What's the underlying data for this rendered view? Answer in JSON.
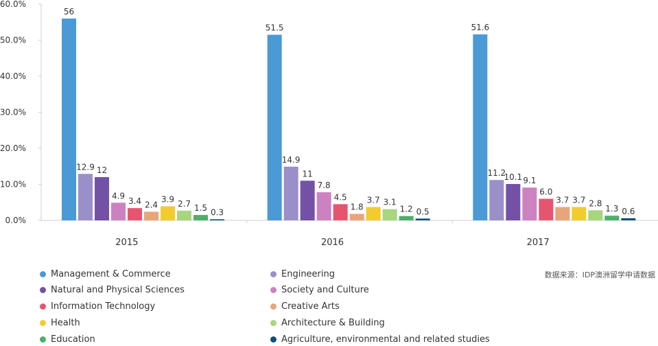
{
  "chart_data": {
    "type": "bar",
    "categories": [
      "2015",
      "2016",
      "2017"
    ],
    "y_tick_labels": [
      "0.0%",
      "10.0%",
      "20.0%",
      "30.0%",
      "40.0%",
      "50.0%",
      "60.0%"
    ],
    "ylim": [
      0,
      60
    ],
    "grid": false,
    "legend_placement": "bottom",
    "series": [
      {
        "name": "Management & Commerce",
        "color": "#4a9ad6",
        "values": [
          56,
          51.5,
          51.6
        ],
        "labels": [
          "56",
          "51.5",
          "51.6"
        ]
      },
      {
        "name": "Engineering",
        "color": "#9a8fc8",
        "values": [
          12.9,
          14.9,
          11.2
        ],
        "labels": [
          "12.9",
          "14.9",
          "11.2"
        ]
      },
      {
        "name": "Natural and Physical Sciences",
        "color": "#7352a6",
        "values": [
          12,
          11,
          10.1
        ],
        "labels": [
          "12",
          "11",
          "10.1"
        ]
      },
      {
        "name": "Society and Culture",
        "color": "#cc82c0",
        "values": [
          4.9,
          7.8,
          9.1
        ],
        "labels": [
          "4.9",
          "7.8",
          "9.1"
        ]
      },
      {
        "name": "Information Technology",
        "color": "#e5566e",
        "values": [
          3.4,
          4.5,
          6.0
        ],
        "labels": [
          "3.4",
          "4.5",
          "6.0"
        ]
      },
      {
        "name": "Creative Arts",
        "color": "#e8a57a",
        "values": [
          2.4,
          1.8,
          3.7
        ],
        "labels": [
          "2.4",
          "1.8",
          "3.7"
        ]
      },
      {
        "name": "Health",
        "color": "#f2cb2e",
        "values": [
          3.9,
          3.7,
          3.7
        ],
        "labels": [
          "3.9",
          "3.7",
          "3.7"
        ]
      },
      {
        "name": "Architecture & Building",
        "color": "#a7d67e",
        "values": [
          2.7,
          3.1,
          2.8
        ],
        "labels": [
          "2.7",
          "3.1",
          "2.8"
        ]
      },
      {
        "name": "Education",
        "color": "#4caf6a",
        "values": [
          1.5,
          1.2,
          1.3
        ],
        "labels": [
          "1.5",
          "1.2",
          "1.3"
        ]
      },
      {
        "name": "Agriculture, environmental and related studies",
        "color": "#0f4f7a",
        "values": [
          0.3,
          0.5,
          0.6
        ],
        "labels": [
          "0.3",
          "0.5",
          "0.6"
        ]
      }
    ],
    "source_note": "数据来源：IDP澳洲留学申请数据"
  }
}
